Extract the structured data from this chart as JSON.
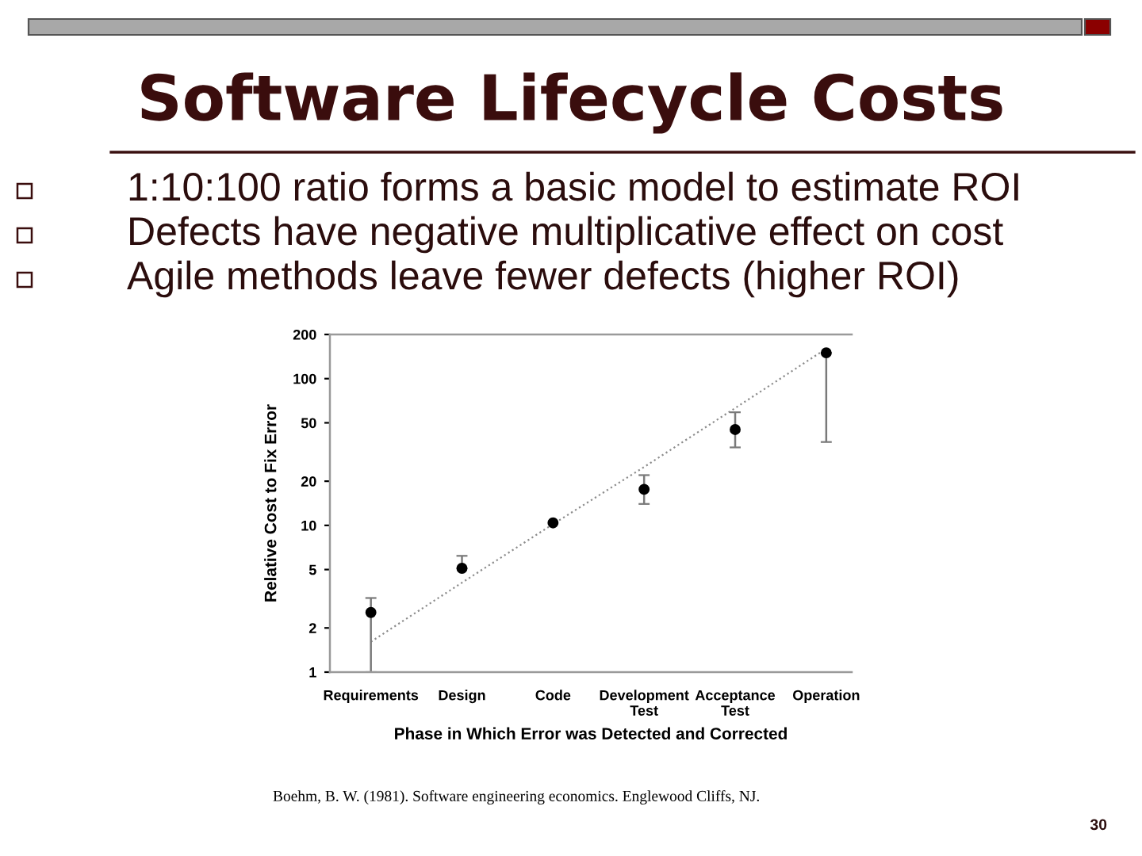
{
  "chart_data": {
    "type": "scatter",
    "title": "Software Lifecycle Costs",
    "xlabel": "Phase in Which Error was Detected and Corrected",
    "ylabel": "Relative Cost to Fix Error",
    "categories": [
      "Requirements",
      "Design",
      "Code",
      "Development Test",
      "Acceptance Test",
      "Operation"
    ],
    "series": [
      {
        "color": "#000000",
        "marker": "circle",
        "values": [
          2.55,
          5.1,
          10.4,
          17.6,
          45,
          150
        ],
        "errors": [
          [
            1,
            3.2
          ],
          [
            5.1,
            6.2
          ],
          null,
          [
            14,
            22
          ],
          [
            34,
            59
          ],
          [
            37,
            150
          ]
        ]
      },
      {
        "type": "line",
        "color": "#8c8c8c",
        "marker": "none",
        "line_style": "dotted",
        "values": [
          1.61,
          4.07,
          10.2,
          25,
          63,
          160
        ]
      }
    ],
    "log": true,
    "ylim": [
      1,
      200
    ],
    "yticks": [
      1,
      2,
      5,
      10,
      20,
      50,
      100,
      200
    ],
    "annotations": [
      "1:10:100 ratio forms a basic model to estimate ROI",
      "Defects have negative multiplicative effect on cost",
      "Agile methods leave fewer defects (higher ROI)",
      "Boehm, B. W. (1981). Software engineering economics. Englewood Cliffs, NJ.",
      "30"
    ]
  }
}
